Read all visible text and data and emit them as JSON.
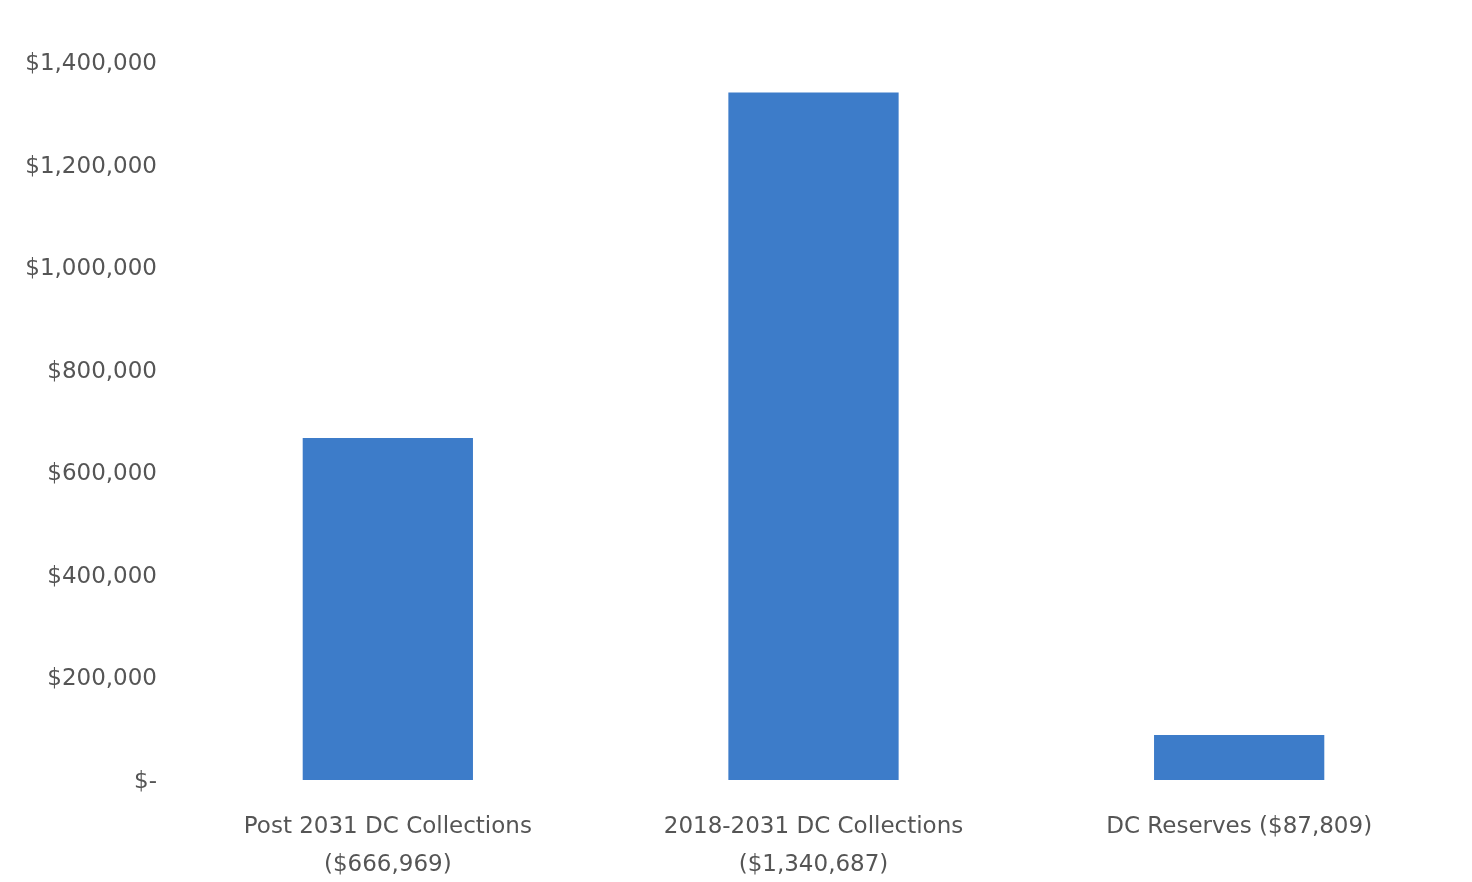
{
  "chart_data": {
    "type": "bar",
    "categories": [
      "Post 2031 DC Collections ($666,969)",
      "2018-2031 DC Collections ($1,340,687)",
      "DC Reserves ($87,809)"
    ],
    "values": [
      666969,
      1340687,
      87809
    ],
    "color": "#3d7cc9",
    "ylim": [
      0,
      1400000
    ],
    "yticks": [
      {
        "value": 0,
        "label": "$-"
      },
      {
        "value": 200000,
        "label": "$200,000"
      },
      {
        "value": 400000,
        "label": "$400,000"
      },
      {
        "value": 600000,
        "label": "$600,000"
      },
      {
        "value": 800000,
        "label": "$800,000"
      },
      {
        "value": 1000000,
        "label": "$1,000,000"
      },
      {
        "value": 1200000,
        "label": "$1,200,000"
      },
      {
        "value": 1400000,
        "label": "$1,400,000"
      }
    ],
    "grid": false
  }
}
